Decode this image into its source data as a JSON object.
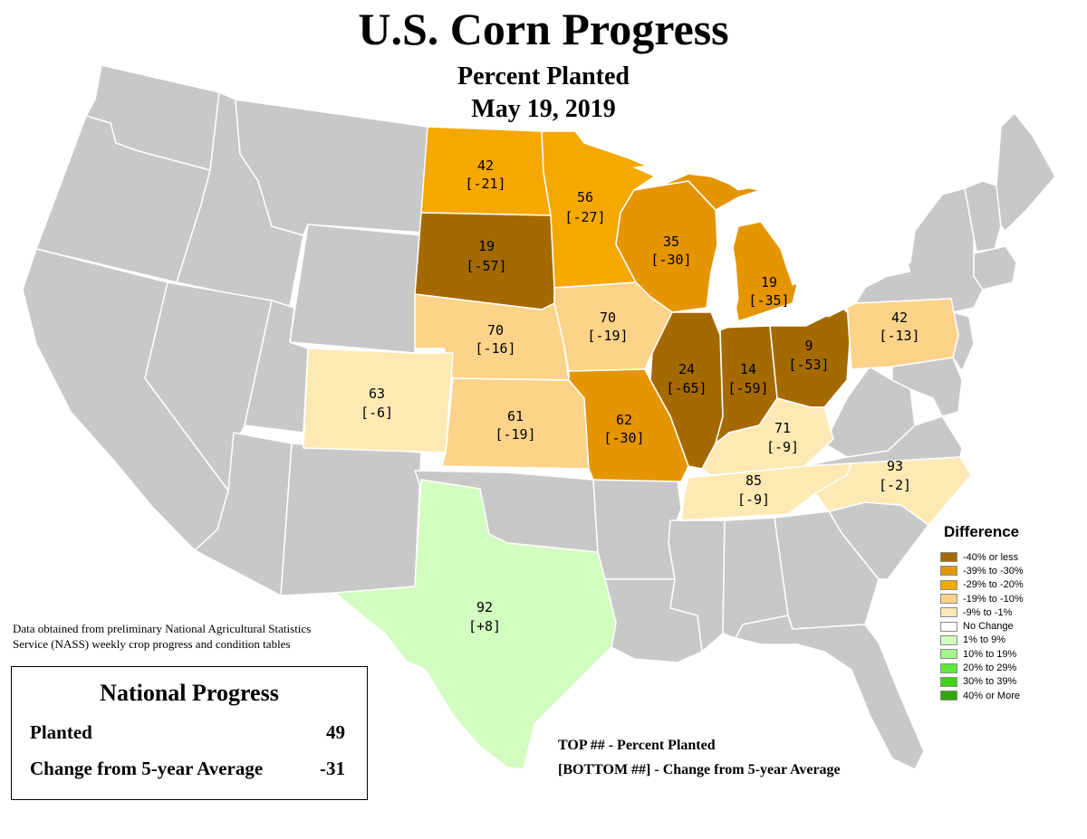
{
  "header": {
    "title": "U.S. Corn Progress",
    "subtitle": "Percent Planted",
    "date": "May 19, 2019"
  },
  "colors": {
    "no_data": "#c8c8c8",
    "border": "#ffffff",
    "lake": "#ffffff"
  },
  "states": {
    "north_dakota": {
      "planted": "42",
      "change": "[-21]",
      "color": "#f5a800"
    },
    "minnesota": {
      "planted": "56",
      "change": "[-27]",
      "color": "#f5a800"
    },
    "south_dakota": {
      "planted": "19",
      "change": "[-57]",
      "color": "#a46a00"
    },
    "wisconsin": {
      "planted": "35",
      "change": "[-30]",
      "color": "#e49500"
    },
    "michigan": {
      "planted": "19",
      "change": "[-35]",
      "color": "#e49500"
    },
    "nebraska": {
      "planted": "70",
      "change": "[-16]",
      "color": "#fdd38a"
    },
    "iowa": {
      "planted": "70",
      "change": "[-19]",
      "color": "#fdd38a"
    },
    "illinois": {
      "planted": "24",
      "change": "[-65]",
      "color": "#a46a00"
    },
    "indiana": {
      "planted": "14",
      "change": "[-59]",
      "color": "#a46a00"
    },
    "ohio": {
      "planted": "9",
      "change": "[-53]",
      "color": "#a46a00"
    },
    "pennsylvania": {
      "planted": "42",
      "change": "[-13]",
      "color": "#fdd38a"
    },
    "colorado": {
      "planted": "63",
      "change": "[-6]",
      "color": "#fee9b5"
    },
    "kansas": {
      "planted": "61",
      "change": "[-19]",
      "color": "#fdd38a"
    },
    "missouri": {
      "planted": "62",
      "change": "[-30]",
      "color": "#e49500"
    },
    "kentucky": {
      "planted": "71",
      "change": "[-9]",
      "color": "#fee9b5"
    },
    "tennessee": {
      "planted": "85",
      "change": "[-9]",
      "color": "#fee9b5"
    },
    "north_carolina": {
      "planted": "93",
      "change": "[-2]",
      "color": "#fee9b5"
    },
    "texas": {
      "planted": "92",
      "change": "[+8]",
      "color": "#d3fcc0"
    }
  },
  "legend": {
    "title": "Difference",
    "items": [
      {
        "label": "-40% or less",
        "color": "#a46a00"
      },
      {
        "label": "-39% to -30%",
        "color": "#e49500"
      },
      {
        "label": "-29% to -20%",
        "color": "#f5a800"
      },
      {
        "label": "-19% to -10%",
        "color": "#fdd38a"
      },
      {
        "label": "-9% to -1%",
        "color": "#fee9b5"
      },
      {
        "label": "No Change",
        "color": "#ffffff"
      },
      {
        "label": "1% to 9%",
        "color": "#d3fcc0"
      },
      {
        "label": "10% to 19%",
        "color": "#a6f58a"
      },
      {
        "label": "20% to 29%",
        "color": "#5fe83b"
      },
      {
        "label": "30% to 39%",
        "color": "#3fd21b"
      },
      {
        "label": "40% or More",
        "color": "#2ea80c"
      }
    ]
  },
  "source_note": {
    "line1": "Data obtained from preliminary National Agricultural Statistics",
    "line2": "Service (NASS) weekly crop progress and condition tables"
  },
  "national": {
    "title": "National Progress",
    "planted_label": "Planted",
    "planted_value": "49",
    "change_label": "Change from 5-year Average",
    "change_value": "-31"
  },
  "key": {
    "top": "TOP ## - Percent Planted",
    "bottom": "[BOTTOM ##] - Change from 5-year Average"
  }
}
